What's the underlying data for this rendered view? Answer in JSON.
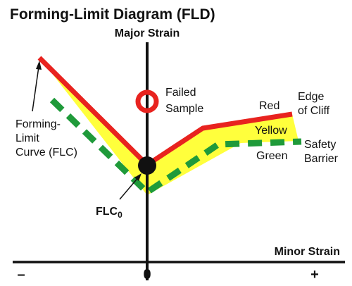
{
  "title": "Forming-Limit Diagram (FLD)",
  "axes": {
    "y_title": "Major Strain",
    "x_title": "Minor Strain",
    "tick_minus": "–",
    "tick_zero": "0",
    "tick_plus": "+"
  },
  "labels": {
    "failed_sample": [
      "Failed",
      "Sample"
    ],
    "flc": [
      "Forming-",
      "Limit",
      "Curve (FLC)"
    ],
    "red": "Red",
    "edge_of_cliff": [
      "Edge",
      "of Cliff"
    ],
    "yellow": "Yellow",
    "green": "Green",
    "safety_barrier": [
      "Safety",
      "Barrier"
    ],
    "flc0_base": "FLC",
    "flc0_sub": "0"
  },
  "colors": {
    "red_curve": "#e8231f",
    "yellow_zone": "#ffff3c",
    "green_barrier": "#1f9a3a",
    "axis": "#111111",
    "failed_marker": "#e8231f"
  },
  "legend": {
    "red": "Red",
    "yellow": "Yellow",
    "green": "Green"
  }
}
